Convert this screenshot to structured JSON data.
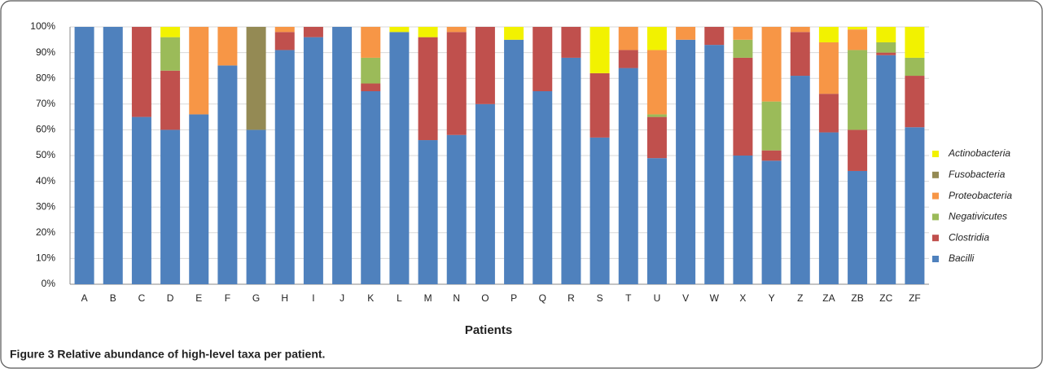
{
  "chart_data": {
    "type": "stacked_bar",
    "xlabel": "Patients",
    "categories": [
      "A",
      "B",
      "C",
      "D",
      "E",
      "F",
      "G",
      "H",
      "I",
      "J",
      "K",
      "L",
      "M",
      "N",
      "O",
      "P",
      "Q",
      "R",
      "S",
      "T",
      "U",
      "V",
      "W",
      "X",
      "Y",
      "Z",
      "ZA",
      "ZB",
      "ZC",
      "ZF"
    ],
    "series": [
      {
        "name": "Bacilli",
        "color": "#4f81bd",
        "values": [
          100,
          100,
          65,
          60,
          66,
          85,
          60,
          91,
          96,
          100,
          75,
          98,
          56,
          58,
          70,
          95,
          75,
          88,
          57,
          84,
          49,
          95,
          93,
          50,
          48,
          81,
          59,
          44,
          89,
          61
        ]
      },
      {
        "name": "Clostridia",
        "color": "#c0504d",
        "values": [
          0,
          0,
          35,
          23,
          0,
          0,
          0,
          7,
          4,
          0,
          3,
          0,
          40,
          40,
          30,
          0,
          25,
          12,
          25,
          7,
          16,
          0,
          7,
          38,
          4,
          17,
          15,
          16,
          1,
          20
        ]
      },
      {
        "name": "Negativicutes",
        "color": "#9bbb59",
        "values": [
          0,
          0,
          0,
          13,
          0,
          0,
          0,
          0,
          0,
          0,
          10,
          0,
          0,
          0,
          0,
          0,
          0,
          0,
          0,
          0,
          1,
          0,
          0,
          7,
          19,
          0,
          0,
          31,
          4,
          7
        ]
      },
      {
        "name": "Proteobacteria",
        "color": "#f79646",
        "values": [
          0,
          0,
          0,
          0,
          34,
          15,
          0,
          2,
          0,
          0,
          12,
          0,
          0,
          2,
          0,
          0,
          0,
          0,
          0,
          9,
          25,
          5,
          0,
          5,
          29,
          2,
          20,
          8,
          0,
          0
        ]
      },
      {
        "name": "Fusobacteria",
        "color": "#948a54",
        "values": [
          0,
          0,
          0,
          0,
          0,
          0,
          40,
          0,
          0,
          0,
          0,
          0,
          0,
          0,
          0,
          0,
          0,
          0,
          0,
          0,
          0,
          0,
          0,
          0,
          0,
          0,
          0,
          0,
          0,
          0
        ]
      },
      {
        "name": "Actinobacteria",
        "color": "#f2f200",
        "values": [
          0,
          0,
          0,
          4,
          0,
          0,
          0,
          0,
          0,
          0,
          0,
          2,
          4,
          0,
          0,
          5,
          0,
          0,
          18,
          0,
          9,
          0,
          0,
          0,
          0,
          0,
          6,
          1,
          6,
          12
        ]
      }
    ],
    "ylim": [
      0,
      100
    ],
    "yticks": [
      {
        "value": 0,
        "label": "0%"
      },
      {
        "value": 10,
        "label": "10%"
      },
      {
        "value": 20,
        "label": "20%"
      },
      {
        "value": 30,
        "label": "30%"
      },
      {
        "value": 40,
        "label": "40%"
      },
      {
        "value": 50,
        "label": "50%"
      },
      {
        "value": 60,
        "label": "60%"
      },
      {
        "value": 70,
        "label": "70%"
      },
      {
        "value": 80,
        "label": "80%"
      },
      {
        "value": 90,
        "label": "90%"
      },
      {
        "value": 100,
        "label": "100%"
      }
    ],
    "grid": true
  },
  "caption": "Figure 3 Relative abundance of high-level taxa per patient."
}
